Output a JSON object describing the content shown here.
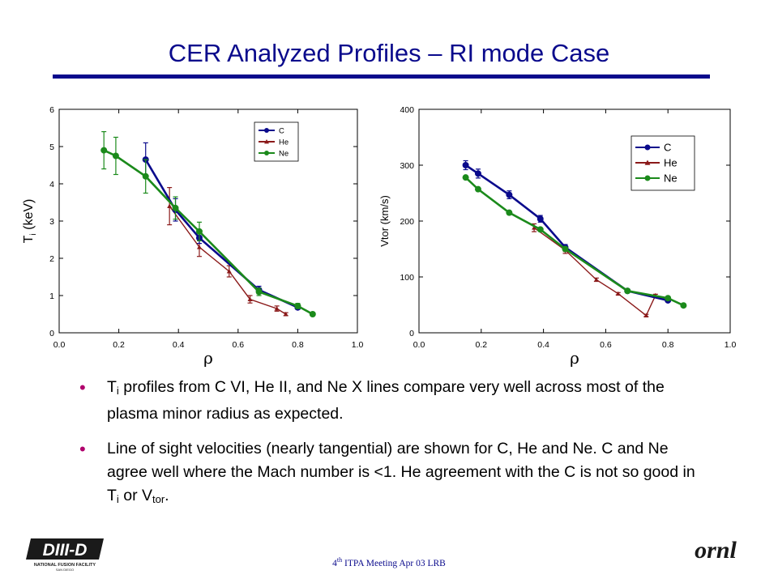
{
  "slide": {
    "title": "CER Analyzed Profiles – RI mode Case",
    "footer_pre": "4",
    "footer_sup": "th",
    "footer_post": " ITPA Meeting  Apr 03  LRB",
    "logos": {
      "left": "DIII-D",
      "left_sub": "NATIONAL FUSION FACILITY",
      "left_city": "SAN DIEGO",
      "right": "ornl"
    }
  },
  "bullets": [
    {
      "segments": [
        {
          "t": "T"
        },
        {
          "t": "i",
          "sub": true
        },
        {
          "t": " profiles from C VI, He II, and Ne X lines compare very well across most of the plasma minor radius as expected."
        }
      ]
    },
    {
      "segments": [
        {
          "t": "Line of sight velocities (nearly tangential) are shown for C, He and Ne. C and Ne agree well where the Mach number is <1. He agreement with the C is not so good in T"
        },
        {
          "t": "i",
          "sub": true
        },
        {
          "t": " or V"
        },
        {
          "t": "tor",
          "sub": true
        },
        {
          "t": "."
        }
      ]
    }
  ],
  "colors": {
    "title": "#0a0a8c",
    "C": "#0a0a8c",
    "He": "#8b1a1a",
    "Ne": "#1b8a1b",
    "bullet": "#b0006c"
  },
  "chart_data": [
    {
      "type": "line",
      "xlabel": "ρ",
      "ylabel": "T",
      "ylabel_sub": "i",
      "ylabel_post": " (keV)",
      "xlim": [
        0,
        1.0
      ],
      "ylim": [
        0,
        6
      ],
      "xticks": [
        "0.0",
        "0.2",
        "0.4",
        "0.6",
        "0.8",
        "1.0"
      ],
      "yticks": [
        "0",
        "1",
        "2",
        "3",
        "4",
        "5",
        "6"
      ],
      "legend_position": "top-right",
      "series": [
        {
          "name": "C",
          "marker": "circle",
          "x": [
            0.29,
            0.39,
            0.47,
            0.67,
            0.8
          ],
          "y": [
            4.65,
            3.3,
            2.55,
            1.15,
            0.68
          ],
          "err": [
            0.45,
            0.3,
            0.15,
            0.1,
            0.05
          ]
        },
        {
          "name": "He",
          "marker": "triangle",
          "x": [
            0.37,
            0.47,
            0.57,
            0.64,
            0.73,
            0.76
          ],
          "y": [
            3.4,
            2.3,
            1.65,
            0.9,
            0.65,
            0.5
          ],
          "err": [
            0.5,
            0.25,
            0.15,
            0.1,
            0.07,
            0.04
          ]
        },
        {
          "name": "Ne",
          "marker": "circle",
          "x": [
            0.15,
            0.19,
            0.29,
            0.39,
            0.47,
            0.67,
            0.8,
            0.85
          ],
          "y": [
            4.9,
            4.75,
            4.2,
            3.35,
            2.72,
            1.1,
            0.72,
            0.5
          ],
          "err": [
            0.5,
            0.5,
            0.45,
            0.3,
            0.25,
            0.1,
            0.07,
            0.03
          ]
        }
      ]
    },
    {
      "type": "line",
      "xlabel": "ρ",
      "ylabel": "Vtor (km/s)",
      "xlim": [
        0,
        1.0
      ],
      "ylim": [
        0,
        400
      ],
      "xticks": [
        "0.0",
        "0.2",
        "0.4",
        "0.6",
        "0.8",
        "1.0"
      ],
      "yticks": [
        "0",
        "100",
        "200",
        "300",
        "400"
      ],
      "legend_position": "top-right",
      "series": [
        {
          "name": "C",
          "marker": "circle",
          "x": [
            0.15,
            0.19,
            0.29,
            0.39,
            0.47,
            0.67,
            0.8
          ],
          "y": [
            300,
            285,
            247,
            204,
            153,
            75,
            58
          ],
          "err": [
            8,
            8,
            7,
            6,
            5,
            3,
            2
          ]
        },
        {
          "name": "He",
          "marker": "triangle",
          "x": [
            0.37,
            0.47,
            0.57,
            0.64,
            0.73,
            0.76
          ],
          "y": [
            188,
            148,
            95,
            70,
            31,
            67
          ],
          "err": [
            7,
            6,
            3,
            2,
            2,
            2
          ]
        },
        {
          "name": "Ne",
          "marker": "circle",
          "x": [
            0.15,
            0.19,
            0.29,
            0.39,
            0.47,
            0.67,
            0.8,
            0.85
          ],
          "y": [
            278,
            257,
            215,
            185,
            150,
            75,
            62,
            49
          ],
          "err": [
            0,
            0,
            0,
            0,
            0,
            0,
            0,
            0
          ]
        }
      ]
    }
  ]
}
